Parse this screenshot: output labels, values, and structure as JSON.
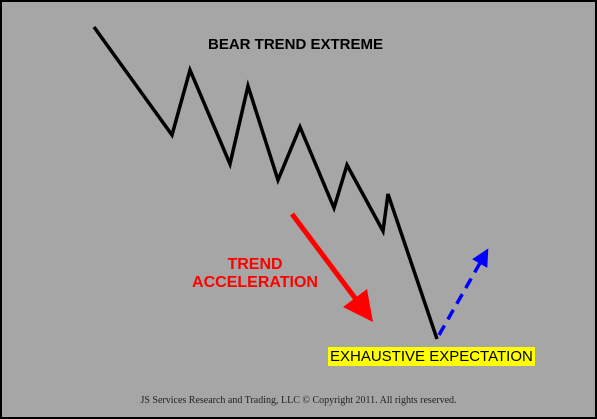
{
  "title": "BEAR TREND EXTREME",
  "acceleration_label": [
    "TREND",
    "ACCELERATION"
  ],
  "exhaustion_label": "EXHAUSTIVE EXPECTATION",
  "copyright": "JS Services Research  and Trading, LLC © Copyright 2011. All rights reserved.",
  "colors": {
    "background": "#a6a6a6",
    "price_line": "#000000",
    "acceleration_arrow": "#ff0000",
    "reversal_arrow": "#0000ff",
    "highlight": "#ffff00"
  }
}
